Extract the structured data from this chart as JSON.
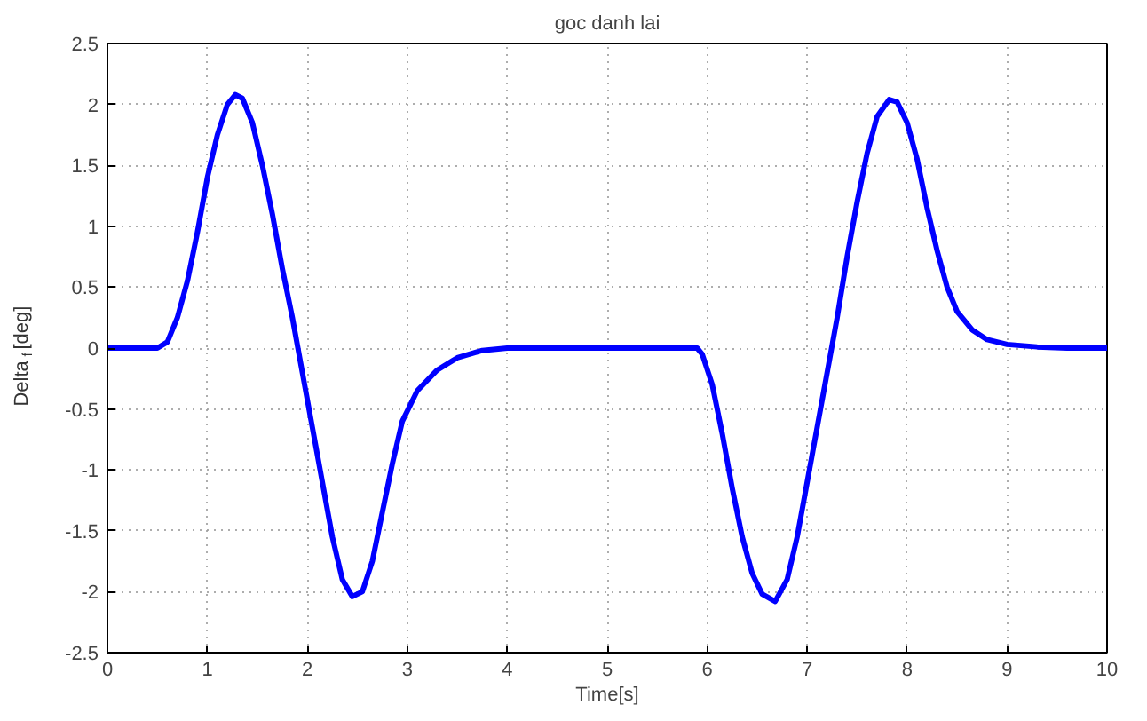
{
  "chart_data": {
    "type": "line",
    "title": "goc danh lai",
    "xlabel": "Time[s]",
    "ylabel": "Delta$_{f}$ [deg]",
    "x": [
      0,
      0.5,
      0.6,
      0.7,
      0.8,
      0.9,
      1.0,
      1.1,
      1.2,
      1.28,
      1.35,
      1.45,
      1.55,
      1.65,
      1.75,
      1.85,
      1.95,
      2.05,
      2.15,
      2.25,
      2.35,
      2.45,
      2.55,
      2.65,
      2.75,
      2.85,
      2.95,
      3.1,
      3.3,
      3.5,
      3.75,
      4.0,
      5.9,
      5.95,
      6.05,
      6.15,
      6.25,
      6.35,
      6.45,
      6.55,
      6.68,
      6.8,
      6.9,
      7.0,
      7.1,
      7.2,
      7.3,
      7.4,
      7.5,
      7.6,
      7.7,
      7.82,
      7.9,
      8.0,
      8.1,
      8.2,
      8.3,
      8.4,
      8.5,
      8.65,
      8.8,
      9.0,
      9.3,
      9.6,
      10
    ],
    "series": [
      {
        "color": "#0000ff",
        "values": [
          0,
          0,
          0.05,
          0.25,
          0.55,
          0.95,
          1.4,
          1.75,
          2.0,
          2.08,
          2.05,
          1.85,
          1.5,
          1.1,
          0.65,
          0.25,
          -0.2,
          -0.65,
          -1.1,
          -1.55,
          -1.9,
          -2.04,
          -2.0,
          -1.75,
          -1.35,
          -0.95,
          -0.6,
          -0.35,
          -0.18,
          -0.08,
          -0.02,
          0,
          0,
          -0.05,
          -0.3,
          -0.7,
          -1.15,
          -1.55,
          -1.85,
          -2.02,
          -2.08,
          -1.9,
          -1.55,
          -1.1,
          -0.65,
          -0.2,
          0.25,
          0.75,
          1.2,
          1.6,
          1.9,
          2.04,
          2.02,
          1.85,
          1.55,
          1.15,
          0.8,
          0.5,
          0.3,
          0.15,
          0.07,
          0.03,
          0.01,
          0,
          0
        ]
      }
    ],
    "xlim": [
      0,
      10
    ],
    "ylim": [
      -2.5,
      2.5
    ],
    "xticks": [
      0,
      1,
      2,
      3,
      4,
      5,
      6,
      7,
      8,
      9,
      10
    ],
    "yticks": [
      -2.5,
      -2,
      -1.5,
      -1,
      -0.5,
      0,
      0.5,
      1,
      1.5,
      2,
      2.5
    ],
    "grid": true,
    "line_style": "solid",
    "marker": "none"
  }
}
